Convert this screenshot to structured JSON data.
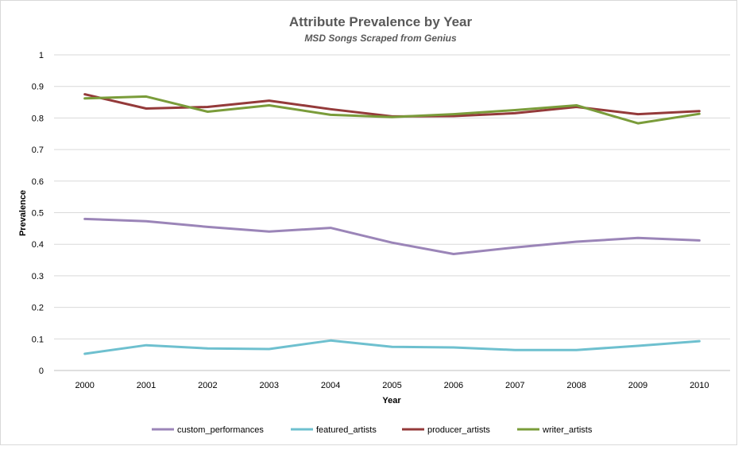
{
  "chart_data": {
    "type": "line",
    "title": "Attribute Prevalence by Year",
    "subtitle": "MSD Songs Scraped from Genius",
    "xlabel": "Year",
    "ylabel": "Prevalence",
    "ylim": [
      0,
      1
    ],
    "yticks": [
      "0",
      "0.1",
      "0.2",
      "0.3",
      "0.4",
      "0.5",
      "0.6",
      "0.7",
      "0.8",
      "0.9",
      "1"
    ],
    "categories": [
      "2000",
      "2001",
      "2002",
      "2003",
      "2004",
      "2005",
      "2006",
      "2007",
      "2008",
      "2009",
      "2010"
    ],
    "grid": true,
    "legend_position": "bottom",
    "series": [
      {
        "name": "custom_performances",
        "color": "#9b85b8",
        "values": [
          0.48,
          0.473,
          0.455,
          0.44,
          0.452,
          0.405,
          0.369,
          0.39,
          0.408,
          0.42,
          0.412
        ]
      },
      {
        "name": "featured_artists",
        "color": "#6ec0cf",
        "values": [
          0.053,
          0.08,
          0.07,
          0.068,
          0.095,
          0.075,
          0.073,
          0.065,
          0.065,
          0.078,
          0.093
        ]
      },
      {
        "name": "producer_artists",
        "color": "#943a3a",
        "values": [
          0.875,
          0.83,
          0.835,
          0.855,
          0.828,
          0.805,
          0.806,
          0.815,
          0.835,
          0.812,
          0.822
        ]
      },
      {
        "name": "writer_artists",
        "color": "#7a9c3a",
        "values": [
          0.862,
          0.868,
          0.82,
          0.84,
          0.81,
          0.803,
          0.812,
          0.825,
          0.84,
          0.783,
          0.813
        ]
      }
    ]
  }
}
